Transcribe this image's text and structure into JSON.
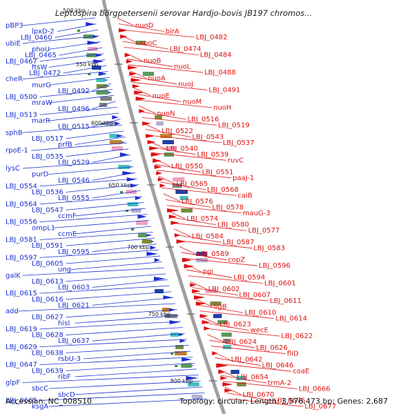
{
  "title": "Leptospira borgpetersenii serovar Hardjo-bovis JB197 chromos...",
  "footer": {
    "accession": "Accession: NC_008510",
    "summary": "Topology: circular; Length: 3,576,473 bp; Genes: 2,687"
  },
  "ticks": [
    {
      "label": "500 kbp"
    },
    {
      "label": "550 kbp"
    },
    {
      "label": "600 kbp"
    },
    {
      "label": "650 kbp"
    },
    {
      "label": "700 kbp"
    },
    {
      "label": "750 kbp"
    },
    {
      "label": "800 kbp"
    }
  ],
  "left_genes": [
    "pBP3",
    "lpxD-2",
    "LBJ_0460",
    "ubiE",
    "phoU",
    "LBJ_0465",
    "LBJ_0467",
    "ftsW",
    "LBJ_0472",
    "cheR",
    "murG",
    "LBJ_0492",
    "LBJ_0500",
    "mraW",
    "LBJ_0496",
    "LBJ_0513",
    "marR",
    "LBJ_0515",
    "sphB",
    "LBJ_0517",
    "prfB",
    "rpoE-1",
    "LBJ_0535",
    "LBJ_0529",
    "lysC",
    "purD",
    "LBJ_0546",
    "LBJ_0554",
    "LBJ_0536",
    "LBJ_0555",
    "LBJ_0564",
    "LBJ_0547",
    "ccmF",
    "LBJ_0556",
    "ompL1",
    "ccmE",
    "LBJ_0581",
    "LBJ_0591",
    "LBJ_0595",
    "LBJ_0597",
    "LBJ_0605",
    "ung",
    "galK",
    "LBJ_0613",
    "LBJ_0603",
    "LBJ_0615",
    "LBJ_0616",
    "LBJ_0621",
    "add",
    "LBJ_0627",
    "hisI",
    "LBJ_0619",
    "LBJ_0628",
    "LBJ_0637",
    "LBJ_0629",
    "LBJ_0638",
    "rsbU-3",
    "LBJ_0647",
    "LBJ_0639",
    "ribF",
    "glpF",
    "sbcC",
    "sbcD",
    "LBJ_0665",
    "ksgA"
  ],
  "right_genes": [
    "nuoD",
    "birA",
    "LBJ_0482",
    "nuoC",
    "LBJ_0474",
    "LBJ_0484",
    "nuoB",
    "nuoL",
    "LBJ_0488",
    "nuoA",
    "nuoJ",
    "LBJ_0491",
    "nuoE",
    "nuoM",
    "nuoH",
    "nuoN",
    "LBJ_0516",
    "LBJ_0519",
    "LBJ_0522",
    "LBJ_0543",
    "LBJ_0537",
    "LBJ_0540",
    "LBJ_0539",
    "ruvC",
    "LBJ_0550",
    "LBJ_0551",
    "paaJ-1",
    "LBJ_0565",
    "LBJ_0568",
    "caiB",
    "LBJ_0576",
    "LBJ_0578",
    "mauG-3",
    "LBJ_0574",
    "LBJ_0580",
    "LBJ_0577",
    "LBJ_0584",
    "LBJ_0587",
    "LBJ_0583",
    "LBJ_0589",
    "copZ",
    "LBJ_0596",
    "pgi",
    "LBJ_0594",
    "LBJ_0601",
    "LBJ_0602",
    "LBJ_0607",
    "LBJ_0611",
    "ligB",
    "LBJ_0610",
    "LBJ_0614",
    "LBJ_0623",
    "wecE",
    "LBJ_0622",
    "LBJ_0624",
    "LBJ_0626",
    "fliD",
    "LBJ_0642",
    "LBJ_0646",
    "coaE",
    "LBJ_0654",
    "trmA-2",
    "LBJ_0666",
    "LBJ_0670",
    "LBJ_0676",
    "LBJ_0677"
  ],
  "colors": {
    "left_label": "#1a2fd0",
    "right_label": "#e01010",
    "backbone": "#a0a0a0"
  }
}
